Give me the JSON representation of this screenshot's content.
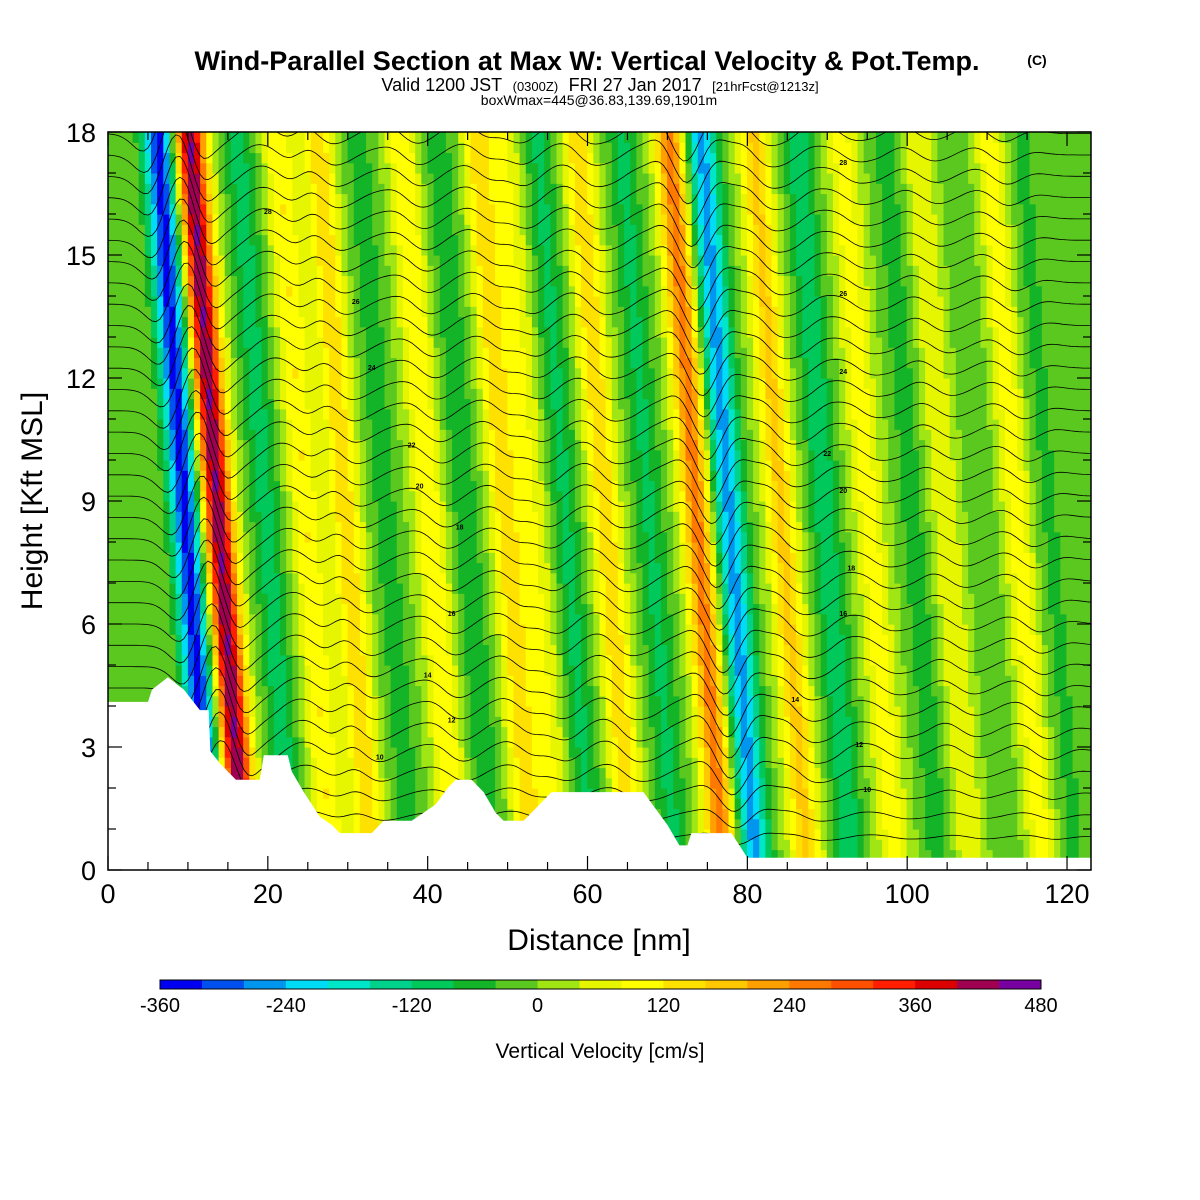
{
  "title": {
    "main": "Wind-Parallel Section at Max W: Vertical Velocity & Pot.Temp.",
    "copyright_mark": "(C)",
    "valid_prefix": "Valid 1200 JST",
    "valid_utc": "(0300Z)",
    "valid_date": "FRI 27 Jan 2017",
    "forecast": "[21hrFcst@1213z]",
    "box_info": "boxWmax=445@36.83,139.69,1901m"
  },
  "chart_data": {
    "type": "heatmap",
    "xlabel": "Distance [nm]",
    "ylabel": "Height [Kft MSL]",
    "xlim": [
      0,
      123
    ],
    "ylim": [
      0,
      18
    ],
    "x_ticks": [
      0,
      20,
      40,
      60,
      80,
      100,
      120
    ],
    "x_tick_labels": [
      "0",
      "20",
      "40",
      "60",
      "80",
      "100",
      "120"
    ],
    "y_ticks": [
      0,
      3,
      6,
      9,
      12,
      15,
      18
    ],
    "y_tick_labels": [
      "0",
      "3",
      "6",
      "9",
      "12",
      "15",
      "18"
    ],
    "x_minor_step": 5,
    "y_minor_step": 1,
    "field": "Vertical Velocity",
    "units": "cm/s",
    "colorbar": {
      "title": "Vertical Velocity [cm/s]",
      "levels": [
        -360,
        -320,
        -280,
        -240,
        -200,
        -160,
        -120,
        -80,
        -40,
        0,
        40,
        80,
        120,
        160,
        200,
        240,
        280,
        320,
        360,
        400,
        440,
        480
      ],
      "tick_labels": [
        "-360",
        "-240",
        "-120",
        "0",
        "120",
        "240",
        "360",
        "480"
      ],
      "colors": [
        "#0000f0",
        "#0050f0",
        "#0096f0",
        "#00dcf5",
        "#00e6c8",
        "#00d28c",
        "#00c85a",
        "#14b428",
        "#5ac81e",
        "#a0e614",
        "#e6f500",
        "#ffff00",
        "#ffe100",
        "#ffc800",
        "#ffa000",
        "#ff7800",
        "#ff5000",
        "#ff1e00",
        "#dc0000",
        "#a00050",
        "#7800a0"
      ]
    },
    "wave_columns": [
      {
        "x": 11.5,
        "w_peak": -340
      },
      {
        "x": 15.5,
        "w_peak": 445
      },
      {
        "x": 21.5,
        "w_peak": -100
      },
      {
        "x": 26.5,
        "w_peak": 120
      },
      {
        "x": 31.5,
        "w_peak": 150
      },
      {
        "x": 36.5,
        "w_peak": -60
      },
      {
        "x": 42.0,
        "w_peak": 120
      },
      {
        "x": 46.5,
        "w_peak": -70
      },
      {
        "x": 51.5,
        "w_peak": 150
      },
      {
        "x": 55.0,
        "w_peak": 80
      },
      {
        "x": 59.0,
        "w_peak": -90
      },
      {
        "x": 64.0,
        "w_peak": 150
      },
      {
        "x": 69.5,
        "w_peak": -90
      },
      {
        "x": 75.5,
        "w_peak": 260
      },
      {
        "x": 79.5,
        "w_peak": -260
      },
      {
        "x": 86.0,
        "w_peak": 170
      },
      {
        "x": 91.5,
        "w_peak": -110
      },
      {
        "x": 97.0,
        "w_peak": 100
      },
      {
        "x": 102.5,
        "w_peak": -60
      },
      {
        "x": 106.5,
        "w_peak": 80
      },
      {
        "x": 111.0,
        "w_peak": -40
      },
      {
        "x": 115.5,
        "w_peak": 100
      },
      {
        "x": 119.5,
        "w_peak": -50
      }
    ],
    "terrain": [
      [
        0,
        4.1
      ],
      [
        5,
        4.1
      ],
      [
        5.5,
        4.4
      ],
      [
        7.5,
        4.7
      ],
      [
        9.5,
        4.4
      ],
      [
        11.5,
        3.9
      ],
      [
        12.6,
        3.9
      ],
      [
        12.8,
        2.9
      ],
      [
        14,
        2.6
      ],
      [
        16,
        2.2
      ],
      [
        19,
        2.2
      ],
      [
        19.5,
        2.8
      ],
      [
        22.5,
        2.8
      ],
      [
        23,
        2.4
      ],
      [
        24.5,
        1.9
      ],
      [
        25.5,
        1.6
      ],
      [
        26.5,
        1.3
      ],
      [
        28,
        1.1
      ],
      [
        29,
        0.9
      ],
      [
        33,
        0.9
      ],
      [
        34.5,
        1.2
      ],
      [
        38,
        1.2
      ],
      [
        39.5,
        1.4
      ],
      [
        41,
        1.6
      ],
      [
        42.5,
        2.0
      ],
      [
        43.5,
        2.2
      ],
      [
        45.5,
        2.2
      ],
      [
        47,
        1.9
      ],
      [
        48.5,
        1.4
      ],
      [
        49.5,
        1.2
      ],
      [
        52,
        1.2
      ],
      [
        53,
        1.4
      ],
      [
        54.5,
        1.7
      ],
      [
        55.5,
        1.9
      ],
      [
        67,
        1.9
      ],
      [
        68.5,
        1.5
      ],
      [
        70,
        1.1
      ],
      [
        71.5,
        0.6
      ],
      [
        72.5,
        0.6
      ],
      [
        73,
        0.9
      ],
      [
        75,
        0.9
      ],
      [
        78,
        0.9
      ],
      [
        79,
        0.6
      ],
      [
        80,
        0.3
      ],
      [
        123,
        0.3
      ]
    ],
    "isentrope_labels": [
      "10",
      "12",
      "14",
      "16",
      "18",
      "20",
      "22",
      "24",
      "26",
      "28"
    ]
  }
}
